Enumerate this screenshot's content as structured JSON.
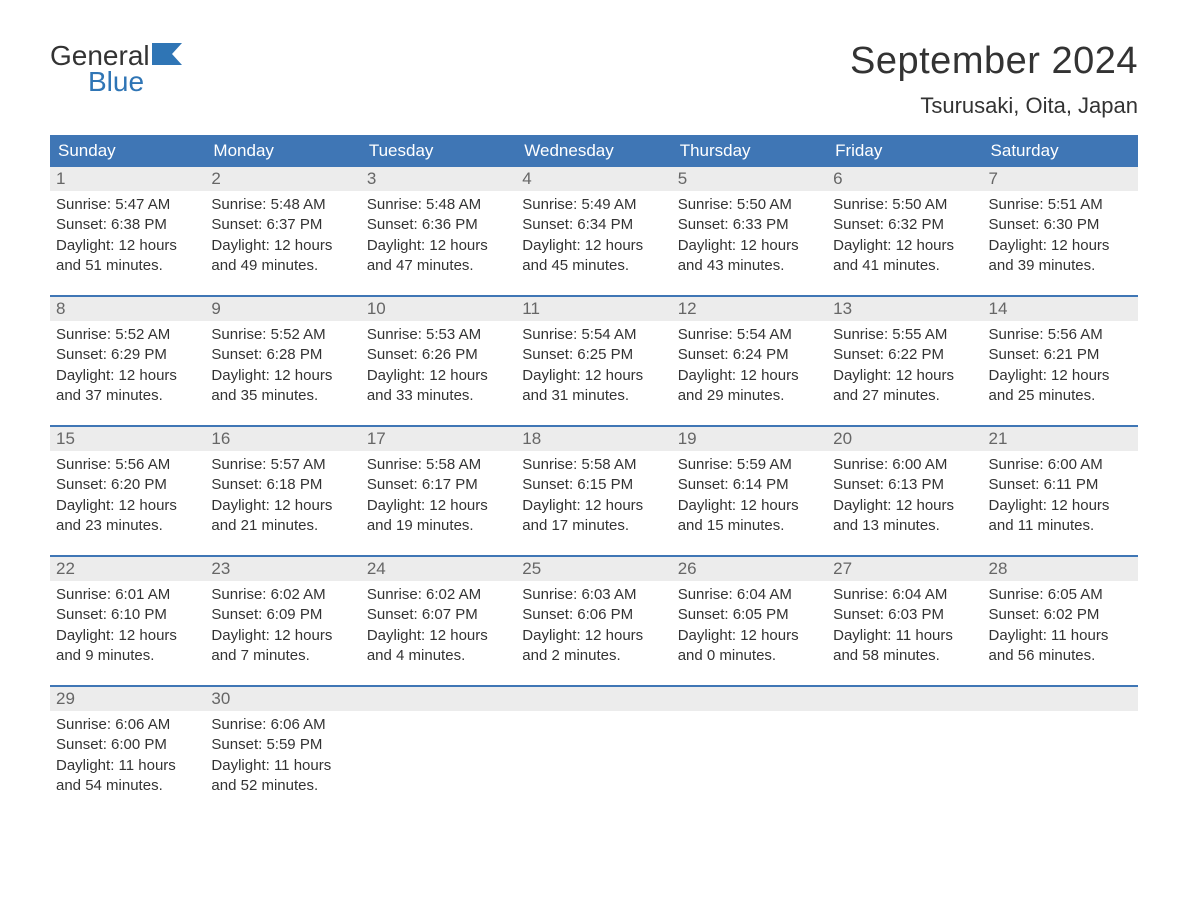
{
  "logo": {
    "word1": "General",
    "word2": "Blue",
    "word1_color": "#333333",
    "word2_color": "#2f75b5",
    "flag_fill": "#2f75b5"
  },
  "header": {
    "month_title": "September 2024",
    "location": "Tsurusaki, Oita, Japan"
  },
  "colors": {
    "header_bg": "#3f76b5",
    "header_text": "#ffffff",
    "daynum_bg": "#ececec",
    "daynum_text": "#666666",
    "body_text": "#333333",
    "week_border": "#3f76b5",
    "page_bg": "#ffffff"
  },
  "weekdays": [
    "Sunday",
    "Monday",
    "Tuesday",
    "Wednesday",
    "Thursday",
    "Friday",
    "Saturday"
  ],
  "weeks": [
    [
      {
        "n": "1",
        "sunrise": "5:47 AM",
        "sunset": "6:38 PM",
        "daylight": "12 hours and 51 minutes."
      },
      {
        "n": "2",
        "sunrise": "5:48 AM",
        "sunset": "6:37 PM",
        "daylight": "12 hours and 49 minutes."
      },
      {
        "n": "3",
        "sunrise": "5:48 AM",
        "sunset": "6:36 PM",
        "daylight": "12 hours and 47 minutes."
      },
      {
        "n": "4",
        "sunrise": "5:49 AM",
        "sunset": "6:34 PM",
        "daylight": "12 hours and 45 minutes."
      },
      {
        "n": "5",
        "sunrise": "5:50 AM",
        "sunset": "6:33 PM",
        "daylight": "12 hours and 43 minutes."
      },
      {
        "n": "6",
        "sunrise": "5:50 AM",
        "sunset": "6:32 PM",
        "daylight": "12 hours and 41 minutes."
      },
      {
        "n": "7",
        "sunrise": "5:51 AM",
        "sunset": "6:30 PM",
        "daylight": "12 hours and 39 minutes."
      }
    ],
    [
      {
        "n": "8",
        "sunrise": "5:52 AM",
        "sunset": "6:29 PM",
        "daylight": "12 hours and 37 minutes."
      },
      {
        "n": "9",
        "sunrise": "5:52 AM",
        "sunset": "6:28 PM",
        "daylight": "12 hours and 35 minutes."
      },
      {
        "n": "10",
        "sunrise": "5:53 AM",
        "sunset": "6:26 PM",
        "daylight": "12 hours and 33 minutes."
      },
      {
        "n": "11",
        "sunrise": "5:54 AM",
        "sunset": "6:25 PM",
        "daylight": "12 hours and 31 minutes."
      },
      {
        "n": "12",
        "sunrise": "5:54 AM",
        "sunset": "6:24 PM",
        "daylight": "12 hours and 29 minutes."
      },
      {
        "n": "13",
        "sunrise": "5:55 AM",
        "sunset": "6:22 PM",
        "daylight": "12 hours and 27 minutes."
      },
      {
        "n": "14",
        "sunrise": "5:56 AM",
        "sunset": "6:21 PM",
        "daylight": "12 hours and 25 minutes."
      }
    ],
    [
      {
        "n": "15",
        "sunrise": "5:56 AM",
        "sunset": "6:20 PM",
        "daylight": "12 hours and 23 minutes."
      },
      {
        "n": "16",
        "sunrise": "5:57 AM",
        "sunset": "6:18 PM",
        "daylight": "12 hours and 21 minutes."
      },
      {
        "n": "17",
        "sunrise": "5:58 AM",
        "sunset": "6:17 PM",
        "daylight": "12 hours and 19 minutes."
      },
      {
        "n": "18",
        "sunrise": "5:58 AM",
        "sunset": "6:15 PM",
        "daylight": "12 hours and 17 minutes."
      },
      {
        "n": "19",
        "sunrise": "5:59 AM",
        "sunset": "6:14 PM",
        "daylight": "12 hours and 15 minutes."
      },
      {
        "n": "20",
        "sunrise": "6:00 AM",
        "sunset": "6:13 PM",
        "daylight": "12 hours and 13 minutes."
      },
      {
        "n": "21",
        "sunrise": "6:00 AM",
        "sunset": "6:11 PM",
        "daylight": "12 hours and 11 minutes."
      }
    ],
    [
      {
        "n": "22",
        "sunrise": "6:01 AM",
        "sunset": "6:10 PM",
        "daylight": "12 hours and 9 minutes."
      },
      {
        "n": "23",
        "sunrise": "6:02 AM",
        "sunset": "6:09 PM",
        "daylight": "12 hours and 7 minutes."
      },
      {
        "n": "24",
        "sunrise": "6:02 AM",
        "sunset": "6:07 PM",
        "daylight": "12 hours and 4 minutes."
      },
      {
        "n": "25",
        "sunrise": "6:03 AM",
        "sunset": "6:06 PM",
        "daylight": "12 hours and 2 minutes."
      },
      {
        "n": "26",
        "sunrise": "6:04 AM",
        "sunset": "6:05 PM",
        "daylight": "12 hours and 0 minutes."
      },
      {
        "n": "27",
        "sunrise": "6:04 AM",
        "sunset": "6:03 PM",
        "daylight": "11 hours and 58 minutes."
      },
      {
        "n": "28",
        "sunrise": "6:05 AM",
        "sunset": "6:02 PM",
        "daylight": "11 hours and 56 minutes."
      }
    ],
    [
      {
        "n": "29",
        "sunrise": "6:06 AM",
        "sunset": "6:00 PM",
        "daylight": "11 hours and 54 minutes."
      },
      {
        "n": "30",
        "sunrise": "6:06 AM",
        "sunset": "5:59 PM",
        "daylight": "11 hours and 52 minutes."
      },
      {
        "empty": true
      },
      {
        "empty": true
      },
      {
        "empty": true
      },
      {
        "empty": true
      },
      {
        "empty": true
      }
    ]
  ],
  "labels": {
    "sunrise_prefix": "Sunrise: ",
    "sunset_prefix": "Sunset: ",
    "daylight_prefix": "Daylight: "
  }
}
